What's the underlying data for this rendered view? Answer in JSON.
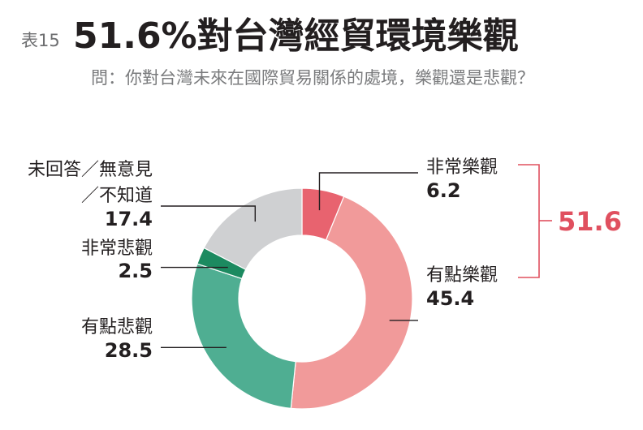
{
  "header": {
    "tag": "表15",
    "headline": "51.6%對台灣經貿環境樂觀",
    "question": "問：你對台灣未來在國際貿易關係的處境，樂觀還是悲觀？"
  },
  "chart_data": {
    "type": "pie",
    "style": "donut",
    "start": "12 o'clock, clockwise",
    "slices": [
      {
        "label": "非常樂觀",
        "value": 6.2,
        "color": "#e8636f"
      },
      {
        "label": "有點樂觀",
        "value": 45.4,
        "color": "#f19a9a"
      },
      {
        "label": "有點悲觀",
        "value": 28.5,
        "color": "#4fae92"
      },
      {
        "label": "非常悲觀",
        "value": 2.5,
        "color": "#1c8a60"
      },
      {
        "label": "未回答／無意見／不知道",
        "value": 17.4,
        "color": "#cfd0d2"
      }
    ],
    "slice_label_lines": [
      [
        "非常樂觀"
      ],
      [
        "有點樂觀"
      ],
      [
        "有點悲觀"
      ],
      [
        "非常悲觀"
      ],
      [
        "未回答／無意見",
        "／不知道"
      ]
    ],
    "bracket": {
      "value": "51.6",
      "color": "#e0505f",
      "spans": [
        "非常樂觀",
        "有點樂觀"
      ]
    }
  }
}
